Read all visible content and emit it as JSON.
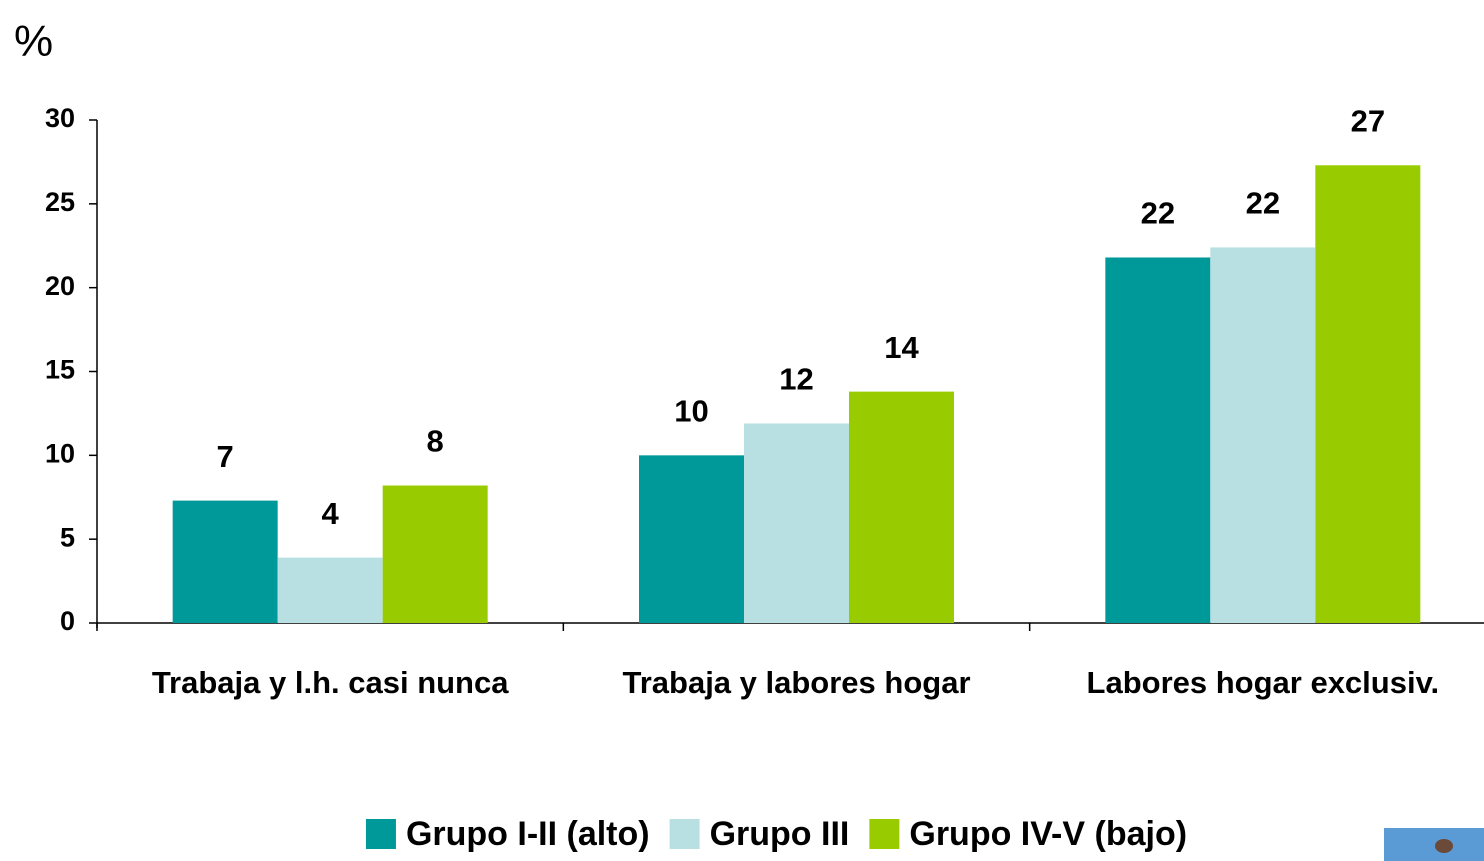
{
  "chart_data": {
    "type": "bar",
    "y_label": "%",
    "categories": [
      "Trabaja y l.h. casi nunca",
      "Trabaja y labores hogar",
      "Labores hogar exclusiv."
    ],
    "series": [
      {
        "name": "Grupo I-II (alto)",
        "color": "#009999",
        "values": [
          7.3,
          10.0,
          21.8
        ],
        "value_labels": [
          "7",
          "10",
          "22"
        ]
      },
      {
        "name": "Grupo III",
        "color": "#b8e0e3",
        "values": [
          3.9,
          11.9,
          22.4
        ],
        "value_labels": [
          "4",
          "12",
          "22"
        ]
      },
      {
        "name": "Grupo IV-V (bajo)",
        "color": "#99cc00",
        "values": [
          8.2,
          13.8,
          27.3
        ],
        "value_labels": [
          "8",
          "14",
          "27"
        ]
      }
    ],
    "ylim": [
      0,
      30
    ],
    "yticks": [
      0,
      5,
      10,
      15,
      20,
      25,
      30
    ],
    "grid": false,
    "legend": "bottom"
  }
}
